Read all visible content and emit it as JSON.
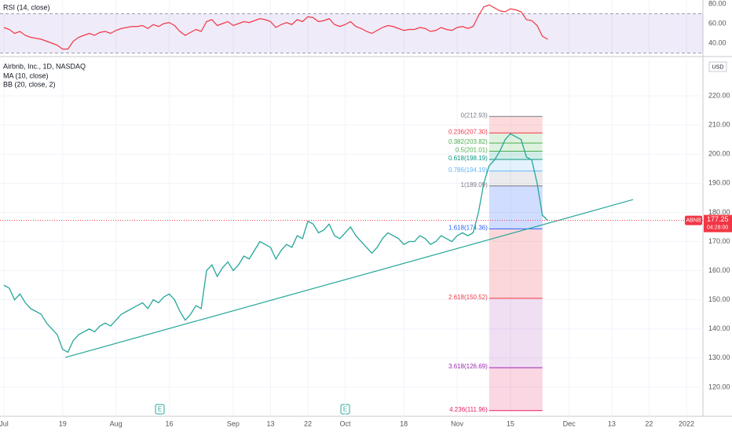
{
  "chart_data": [
    {
      "type": "line",
      "title": "Airbnb, Inc., 1D, NASDAQ",
      "indicators": [
        "MA (10, close)",
        "BB (20, close, 2)"
      ],
      "currency": "USD",
      "symbol": "ABNB",
      "last_price": 177.25,
      "countdown": "04:28:00",
      "color": "#26a69a",
      "x": [
        0,
        1,
        2,
        3,
        4,
        5,
        6,
        7,
        8,
        9,
        10,
        11,
        12,
        13,
        14,
        15,
        16,
        17,
        18,
        19,
        20,
        21,
        22,
        23,
        24,
        25,
        26,
        27,
        28,
        29,
        30,
        31,
        32,
        33,
        34,
        35,
        36,
        37,
        38,
        39,
        40,
        41,
        42,
        43,
        44,
        45,
        46,
        47,
        48,
        49,
        50,
        51,
        52,
        53,
        54,
        55,
        56,
        57,
        58,
        59,
        60,
        61,
        62,
        63,
        64,
        65,
        66,
        67,
        68,
        69,
        70,
        71,
        72,
        73,
        74,
        75,
        76,
        77,
        78,
        79,
        80,
        81,
        82,
        83,
        84,
        85,
        86,
        87,
        88,
        89,
        90,
        91,
        92,
        93,
        94,
        95,
        96,
        97,
        98,
        99,
        100,
        101,
        102
      ],
      "values": [
        155,
        154,
        150,
        152,
        149,
        147,
        146,
        145,
        142,
        140,
        138,
        133,
        132,
        136,
        138,
        139,
        140,
        139,
        141,
        142,
        141,
        143,
        145,
        146,
        147,
        148,
        149,
        147,
        150,
        149,
        151,
        152,
        150,
        146,
        143,
        145,
        148,
        147,
        160,
        162,
        158,
        161,
        163,
        160,
        162,
        165,
        164,
        167,
        170,
        169,
        168,
        164,
        167,
        169,
        168,
        172,
        171,
        177,
        176,
        173,
        174,
        176,
        172,
        171,
        173,
        175,
        172,
        170,
        168,
        166,
        168,
        171,
        173,
        172,
        171,
        169,
        170,
        170,
        172,
        171,
        169,
        170,
        172,
        171,
        170,
        172,
        173,
        172,
        173,
        180,
        190,
        196,
        198,
        201,
        205,
        207,
        206,
        205,
        199,
        198,
        190,
        179,
        177.25
      ],
      "xlim": [
        -0.74,
        131.1
      ],
      "xticks": [
        {
          "value": 0,
          "label": "Jul"
        },
        {
          "value": 11,
          "label": "19"
        },
        {
          "value": 21,
          "label": "Aug"
        },
        {
          "value": 31,
          "label": "16"
        },
        {
          "value": 43,
          "label": "Sep"
        },
        {
          "value": 50,
          "label": "13"
        },
        {
          "value": 57,
          "label": "22"
        },
        {
          "value": 64,
          "label": "Oct"
        },
        {
          "value": 75,
          "label": "18"
        },
        {
          "value": 85,
          "label": "Nov"
        },
        {
          "value": 95,
          "label": "15"
        },
        {
          "value": 106,
          "label": "Dec"
        },
        {
          "value": 114,
          "label": "13"
        },
        {
          "value": 121,
          "label": "22"
        },
        {
          "value": 128,
          "label": "2022"
        }
      ],
      "ylim": [
        110,
        232.7
      ],
      "yticks": [
        {
          "value": 120,
          "label": "120.00"
        },
        {
          "value": 130,
          "label": "130.00"
        },
        {
          "value": 140,
          "label": "140.00"
        },
        {
          "value": 150,
          "label": "150.00"
        },
        {
          "value": 160,
          "label": "160.00"
        },
        {
          "value": 170,
          "label": "170.00"
        },
        {
          "value": 180,
          "label": "180.00"
        },
        {
          "value": 190,
          "label": "190.00"
        },
        {
          "value": 200,
          "label": "200.00"
        },
        {
          "value": 210,
          "label": "210.00"
        },
        {
          "value": 220,
          "label": "220.00"
        }
      ],
      "grid": true,
      "trendline": {
        "x": [
          11.5,
          118
        ],
        "values": [
          130.2,
          184.4
        ],
        "color": "#26a69a"
      },
      "fibonacci": {
        "x": [
          91,
          101
        ],
        "levels": [
          {
            "label": "0(212.93)",
            "price": 212.93,
            "color": "#787b86"
          },
          {
            "label": "0.236(207.30)",
            "price": 207.3,
            "color": "#f23645"
          },
          {
            "label": "0.382(203.82)",
            "price": 203.82,
            "color": "#4caf50"
          },
          {
            "label": "0.5(201.01)",
            "price": 201.01,
            "color": "#4caf50"
          },
          {
            "label": "0.618(198.19)",
            "price": 198.19,
            "color": "#089981"
          },
          {
            "label": "0.786(194.19)",
            "price": 194.19,
            "color": "#64b5f6"
          },
          {
            "label": "1(189.09)",
            "price": 189.09,
            "color": "#787b86"
          },
          {
            "label": "1.618(174.36)",
            "price": 174.36,
            "color": "#2962ff"
          },
          {
            "label": "2.618(150.52)",
            "price": 150.52,
            "color": "#f23645"
          },
          {
            "label": "3.618(126.69)",
            "price": 126.69,
            "color": "#9c27b0"
          },
          {
            "label": "4.236(111.96)",
            "price": 111.96,
            "color": "#e91e63"
          }
        ],
        "fills": [
          "rgba(242,54,69,0.18)",
          "rgba(76,175,80,0.18)",
          "rgba(76,175,80,0.18)",
          "rgba(8,153,129,0.18)",
          "rgba(100,181,246,0.18)",
          "rgba(120,123,134,0.15)",
          "rgba(41,98,255,0.22)",
          "rgba(242,54,69,0.2)",
          "rgba(156,39,176,0.15)",
          "rgba(233,30,99,0.18)"
        ]
      }
    },
    {
      "type": "line",
      "title": "RSI (14, close)",
      "color": "#f23645",
      "x": [
        0,
        1,
        2,
        3,
        4,
        5,
        6,
        7,
        8,
        9,
        10,
        11,
        12,
        13,
        14,
        15,
        16,
        17,
        18,
        19,
        20,
        21,
        22,
        23,
        24,
        25,
        26,
        27,
        28,
        29,
        30,
        31,
        32,
        33,
        34,
        35,
        36,
        37,
        38,
        39,
        40,
        41,
        42,
        43,
        44,
        45,
        46,
        47,
        48,
        49,
        50,
        51,
        52,
        53,
        54,
        55,
        56,
        57,
        58,
        59,
        60,
        61,
        62,
        63,
        64,
        65,
        66,
        67,
        68,
        69,
        70,
        71,
        72,
        73,
        74,
        75,
        76,
        77,
        78,
        79,
        80,
        81,
        82,
        83,
        84,
        85,
        86,
        87,
        88,
        89,
        90,
        91,
        92,
        93,
        94,
        95,
        96,
        97,
        98,
        99,
        100,
        101,
        102
      ],
      "values": [
        56,
        54,
        50,
        52,
        48,
        46,
        45,
        44,
        42,
        40,
        38,
        34,
        34,
        42,
        46,
        48,
        50,
        48,
        51,
        52,
        50,
        53,
        55,
        56,
        57,
        57,
        58,
        55,
        59,
        57,
        60,
        61,
        58,
        52,
        48,
        51,
        54,
        52,
        62,
        64,
        58,
        60,
        62,
        58,
        60,
        62,
        61,
        63,
        65,
        64,
        62,
        56,
        59,
        61,
        59,
        64,
        62,
        67,
        66,
        62,
        63,
        65,
        59,
        57,
        59,
        62,
        57,
        55,
        52,
        50,
        53,
        56,
        58,
        57,
        55,
        53,
        54,
        54,
        56,
        55,
        52,
        53,
        56,
        54,
        53,
        56,
        57,
        55,
        57,
        68,
        77,
        79,
        76,
        73,
        72,
        75,
        74,
        72,
        64,
        63,
        58,
        47,
        44
      ],
      "xlim": [
        -0.74,
        131.1
      ],
      "ylim": [
        27.2,
        84
      ],
      "band": [
        30,
        70
      ],
      "yticks": [
        {
          "value": 40,
          "label": "40.00"
        },
        {
          "value": 60,
          "label": "60.00"
        },
        {
          "value": 80,
          "label": "80.00"
        }
      ]
    }
  ]
}
